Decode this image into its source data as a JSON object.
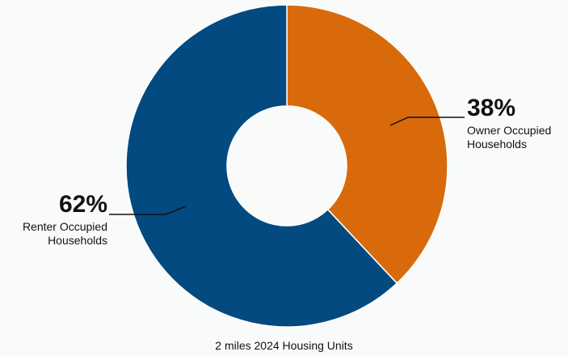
{
  "chart_data": {
    "type": "donut",
    "title": "2 miles 2024 Housing Units",
    "categories": [
      "Owner Occupied Households",
      "Renter Occupied Households"
    ],
    "values": [
      38,
      62
    ],
    "value_labels": [
      "38%",
      "62%"
    ],
    "colors": [
      "#d86a0b",
      "#024a80"
    ]
  }
}
